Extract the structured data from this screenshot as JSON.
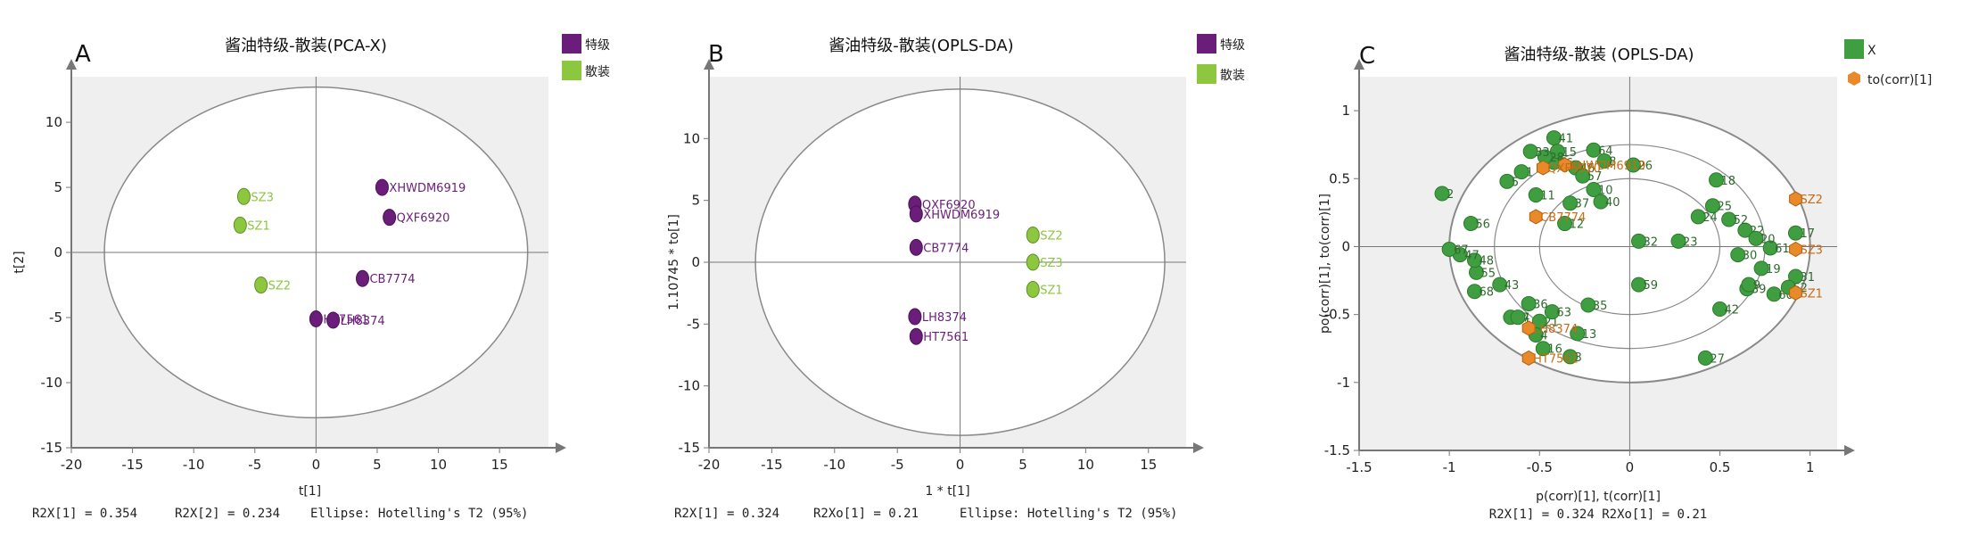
{
  "panels": [
    {
      "letter": "A",
      "title": "酱油特级-散装(PCA-X)",
      "legend": [
        {
          "label": "特级",
          "color": "#6a1e7a"
        },
        {
          "label": "散装",
          "color": "#8dc63f"
        }
      ],
      "footer": [
        "R2X[1] = 0.354",
        "R2X[2] = 0.234",
        "Ellipse: Hotelling's T2 (95%)"
      ]
    },
    {
      "letter": "B",
      "title": "酱油特级-散装(OPLS-DA)",
      "legend": [
        {
          "label": "特级",
          "color": "#6a1e7a"
        },
        {
          "label": "散装",
          "color": "#8dc63f"
        }
      ],
      "footer": [
        "R2X[1] = 0.324",
        "R2Xo[1] = 0.21",
        "Ellipse: Hotelling's T2 (95%)"
      ]
    },
    {
      "letter": "C",
      "title": "酱油特级-散装 (OPLS-DA)",
      "legend": [
        {
          "label": "X",
          "color": "#3f9e3f"
        },
        {
          "label": "to(corr)[1]",
          "color": "#e8892a"
        }
      ],
      "footer": [
        "R2X[1] = 0.324 R2Xo[1] = 0.21"
      ]
    }
  ],
  "chart_data": [
    {
      "type": "scatter",
      "title": "酱油特级-散装(PCA-X)",
      "xlabel": "t[1]",
      "ylabel": "t[2]",
      "xlim": [
        -20,
        19
      ],
      "ylim": [
        -15,
        13.5
      ],
      "xticks": [
        -20,
        -15,
        -10,
        -5,
        0,
        5,
        10,
        15
      ],
      "yticks": [
        -15,
        -10,
        -5,
        0,
        5,
        10
      ],
      "ellipse": {
        "rx": 17.3,
        "ry": 12.7
      },
      "series": [
        {
          "name": "特级",
          "color": "#6a1e7a",
          "points": [
            {
              "label": "XHWDM6919",
              "x": 5.4,
              "y": 5.0
            },
            {
              "label": "QXF6920",
              "x": 6.0,
              "y": 2.7
            },
            {
              "label": "CB7774",
              "x": 3.8,
              "y": -2.0
            },
            {
              "label": "HT7561",
              "x": 0.0,
              "y": -5.1
            },
            {
              "label": "LH8374",
              "x": 1.4,
              "y": -5.2
            }
          ]
        },
        {
          "name": "散装",
          "color": "#8dc63f",
          "points": [
            {
              "label": "SZ3",
              "x": -5.9,
              "y": 4.3
            },
            {
              "label": "SZ1",
              "x": -6.2,
              "y": 2.1
            },
            {
              "label": "SZ2",
              "x": -4.5,
              "y": -2.5
            }
          ]
        }
      ]
    },
    {
      "type": "scatter",
      "title": "酱油特级-散装(OPLS-DA)",
      "xlabel": "1 * t[1]",
      "ylabel": "1.10745 * to[1]",
      "xlim": [
        -20,
        18
      ],
      "ylim": [
        -15,
        15
      ],
      "xticks": [
        -20,
        -15,
        -10,
        -5,
        0,
        5,
        10,
        15
      ],
      "yticks": [
        -15,
        -10,
        -5,
        0,
        5,
        10
      ],
      "ellipse": {
        "rx": 16.3,
        "ry": 14.0
      },
      "series": [
        {
          "name": "特级",
          "color": "#6a1e7a",
          "points": [
            {
              "label": "QXF6920",
              "x": -3.6,
              "y": 4.7
            },
            {
              "label": "XHWDM6919",
              "x": -3.5,
              "y": 3.9
            },
            {
              "label": "CB7774",
              "x": -3.5,
              "y": 1.2
            },
            {
              "label": "LH8374",
              "x": -3.6,
              "y": -4.4
            },
            {
              "label": "HT7561",
              "x": -3.5,
              "y": -6.0
            }
          ]
        },
        {
          "name": "散装",
          "color": "#8dc63f",
          "points": [
            {
              "label": "SZ2",
              "x": 5.8,
              "y": 2.2
            },
            {
              "label": "SZ3",
              "x": 5.8,
              "y": 0.0
            },
            {
              "label": "SZ1",
              "x": 5.8,
              "y": -2.2
            }
          ]
        }
      ]
    },
    {
      "type": "scatter",
      "title": "酱油特级-散装 (OPLS-DA)",
      "xlabel": "p(corr)[1], t(corr)[1]",
      "ylabel": "po(corr)[1], to(corr)[1]",
      "xlim": [
        -1.5,
        1.15
      ],
      "ylim": [
        -1.5,
        1.25
      ],
      "xticks": [
        -1.5,
        -1,
        -0.5,
        0,
        0.5,
        1
      ],
      "yticks": [
        -1.5,
        -1,
        -0.5,
        0,
        0.5,
        1
      ],
      "rings": [
        {
          "rx": 1.0,
          "ry": 1.0
        },
        {
          "rx": 0.75,
          "ry": 0.75
        },
        {
          "rx": 0.5,
          "ry": 0.5
        }
      ],
      "series": [
        {
          "name": "X",
          "color": "#3f9e3f",
          "points": [
            {
              "label": "41",
              "x": -0.42,
              "y": 0.8
            },
            {
              "label": "64",
              "x": -0.2,
              "y": 0.71
            },
            {
              "label": "26",
              "x": 0.02,
              "y": 0.6
            },
            {
              "label": "10",
              "x": -0.2,
              "y": 0.42
            },
            {
              "label": "37",
              "x": -0.33,
              "y": 0.32
            },
            {
              "label": "18",
              "x": 0.48,
              "y": 0.49
            },
            {
              "label": "25",
              "x": 0.46,
              "y": 0.3
            },
            {
              "label": "24",
              "x": 0.38,
              "y": 0.22
            },
            {
              "label": "12",
              "x": -0.36,
              "y": 0.17
            },
            {
              "label": "32",
              "x": 0.05,
              "y": 0.04
            },
            {
              "label": "23",
              "x": 0.27,
              "y": 0.04
            },
            {
              "label": "59",
              "x": 0.05,
              "y": -0.28
            },
            {
              "label": "35",
              "x": -0.23,
              "y": -0.43
            },
            {
              "label": "13",
              "x": -0.29,
              "y": -0.64
            },
            {
              "label": "3",
              "x": -0.33,
              "y": -0.81
            },
            {
              "label": "27",
              "x": 0.42,
              "y": -0.82
            },
            {
              "label": "42",
              "x": 0.5,
              "y": -0.46
            },
            {
              "label": "19",
              "x": 0.73,
              "y": -0.16
            },
            {
              "label": "39",
              "x": 0.65,
              "y": -0.31
            },
            {
              "label": "61",
              "x": 0.78,
              "y": -0.01
            },
            {
              "label": "56",
              "x": -0.88,
              "y": 0.17
            },
            {
              "label": "2",
              "x": -1.04,
              "y": 0.39
            },
            {
              "label": "68",
              "x": -0.86,
              "y": -0.33
            },
            {
              "label": "55",
              "x": -0.85,
              "y": -0.19
            },
            {
              "label": "48",
              "x": -0.86,
              "y": -0.1
            },
            {
              "label": "47",
              "x": -0.94,
              "y": -0.06
            },
            {
              "label": "67",
              "x": -1.0,
              "y": -0.02
            },
            {
              "label": "66",
              "x": -0.42,
              "y": 0.62
            },
            {
              "label": "46",
              "x": -0.3,
              "y": 0.58
            },
            {
              "label": "57",
              "x": -0.26,
              "y": 0.52
            },
            {
              "label": "8",
              "x": -0.14,
              "y": 0.63
            },
            {
              "label": "22",
              "x": 0.64,
              "y": 0.12
            },
            {
              "label": "9",
              "x": 0.66,
              "y": -0.28
            },
            {
              "label": "20",
              "x": 0.7,
              "y": 0.06
            },
            {
              "label": "30",
              "x": 0.6,
              "y": -0.06
            },
            {
              "label": "31",
              "x": 0.92,
              "y": -0.22
            },
            {
              "label": "17",
              "x": 0.92,
              "y": 0.1
            },
            {
              "label": "1",
              "x": -0.6,
              "y": 0.55
            },
            {
              "label": "5",
              "x": -0.68,
              "y": 0.48
            },
            {
              "label": "11",
              "x": -0.52,
              "y": 0.38
            },
            {
              "label": "14",
              "x": -0.66,
              "y": -0.52
            },
            {
              "label": "21",
              "x": -0.5,
              "y": -0.55
            },
            {
              "label": "63",
              "x": -0.43,
              "y": -0.48
            },
            {
              "label": "36",
              "x": -0.56,
              "y": -0.42
            },
            {
              "label": "43",
              "x": -0.72,
              "y": -0.28
            },
            {
              "label": "15",
              "x": -0.4,
              "y": 0.7
            },
            {
              "label": "28",
              "x": -0.47,
              "y": 0.66
            },
            {
              "label": "33",
              "x": -0.55,
              "y": 0.7
            },
            {
              "label": "40",
              "x": -0.16,
              "y": 0.33
            },
            {
              "label": "52",
              "x": 0.55,
              "y": 0.2
            },
            {
              "label": "60",
              "x": 0.8,
              "y": -0.35
            },
            {
              "label": "62",
              "x": 0.88,
              "y": -0.3
            },
            {
              "label": "7",
              "x": -0.62,
              "y": -0.52
            },
            {
              "label": "4",
              "x": -0.52,
              "y": -0.65
            },
            {
              "label": "16",
              "x": -0.48,
              "y": -0.75
            }
          ]
        },
        {
          "name": "to(corr)[1]",
          "color": "#e8892a",
          "points": [
            {
              "label": "XHWDM6919",
              "x": -0.36,
              "y": 0.6
            },
            {
              "label": "QXF6920",
              "x": -0.48,
              "y": 0.58
            },
            {
              "label": "CB7774",
              "x": -0.52,
              "y": 0.22
            },
            {
              "label": "LH8374",
              "x": -0.56,
              "y": -0.6
            },
            {
              "label": "HT7561",
              "x": -0.56,
              "y": -0.82
            },
            {
              "label": "SZ2",
              "x": 0.92,
              "y": 0.35
            },
            {
              "label": "SZ3",
              "x": 0.92,
              "y": -0.02
            },
            {
              "label": "SZ1",
              "x": 0.92,
              "y": -0.34
            }
          ]
        }
      ]
    }
  ]
}
